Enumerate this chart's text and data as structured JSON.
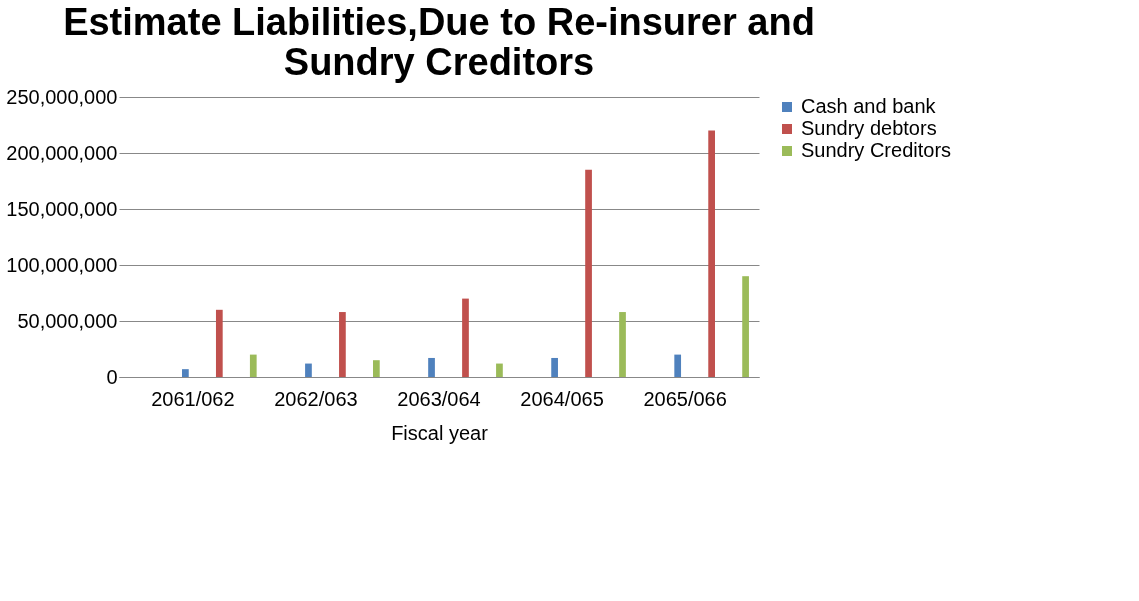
{
  "chart_data": {
    "type": "bar",
    "title": "Estimate Liabilities,Due to Re-insurer and Sundry Creditors",
    "xlabel": "Fiscal year",
    "categories": [
      "2061/062",
      "2062/063",
      "2063/064",
      "2064/065",
      "2065/066"
    ],
    "series": [
      {
        "name": "Cash and bank",
        "color": "#4f81bd",
        "values": [
          7000000,
          12000000,
          17000000,
          17000000,
          20000000
        ]
      },
      {
        "name": "Sundry debtors",
        "color": "#c0504d",
        "values": [
          60000000,
          58000000,
          70000000,
          185000000,
          220000000
        ]
      },
      {
        "name": "Sundry Creditors",
        "color": "#9bbb59",
        "values": [
          20000000,
          15000000,
          12000000,
          58000000,
          90000000
        ]
      }
    ],
    "ylim": [
      0,
      250000000
    ],
    "yticks": [
      {
        "value": 0,
        "label": "0"
      },
      {
        "value": 50000000,
        "label": "50,000,000"
      },
      {
        "value": 100000000,
        "label": "100,000,000"
      },
      {
        "value": 150000000,
        "label": "150,000,000"
      },
      {
        "value": 200000000,
        "label": "200,000,000"
      },
      {
        "value": 250000000,
        "label": "250,000,000"
      }
    ],
    "grid": "y",
    "legend": "right"
  }
}
